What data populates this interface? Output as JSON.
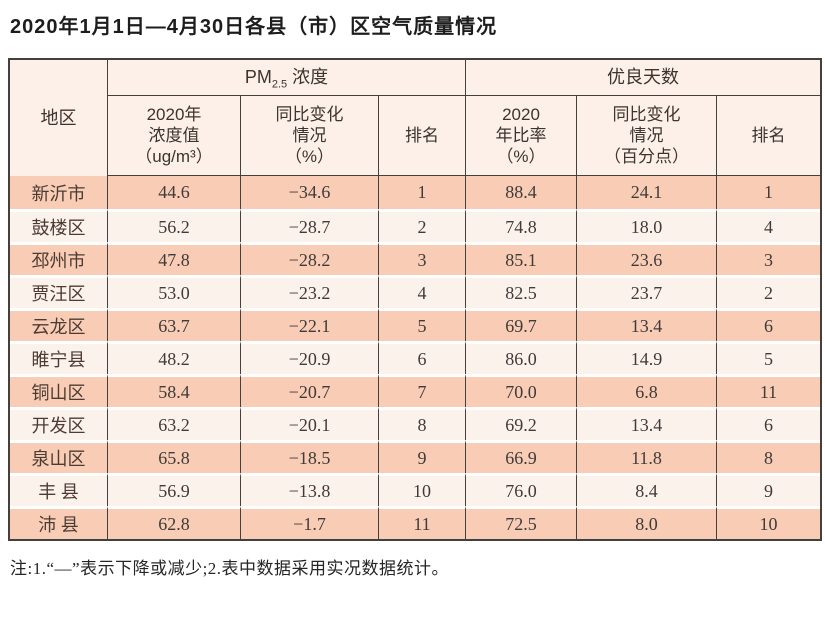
{
  "page": {
    "title": "2020年1月1日—4月30日各县（市）区空气质量情况",
    "note": "注:1.“—”表示下降或减少;2.表中数据采用实况数据统计。"
  },
  "table": {
    "corner_label": "地区",
    "pm_group": {
      "prefix": "PM",
      "sub": "2.5",
      "suffix": " 浓度"
    },
    "days_group_label": "优良天数",
    "sub_headers": {
      "pm_value": "2020年\n浓度值\n（ug/m³）",
      "pm_change": "同比变化\n情况\n（%）",
      "pm_rank": "排名",
      "days_rate": "2020\n年比率\n（%）",
      "days_change": "同比变化\n情况\n（百分点）",
      "days_rank": "排名"
    },
    "field_order": "region,pm_value,pm_change,pm_rank,days_rate,days_change,days_rank",
    "rows": [
      {
        "region": "新沂市",
        "pm_value": "44.6",
        "pm_change": "−34.6",
        "pm_rank": "1",
        "days_rate": "88.4",
        "days_change": "24.1",
        "days_rank": "1"
      },
      {
        "region": "鼓楼区",
        "pm_value": "56.2",
        "pm_change": "−28.7",
        "pm_rank": "2",
        "days_rate": "74.8",
        "days_change": "18.0",
        "days_rank": "4"
      },
      {
        "region": "邳州市",
        "pm_value": "47.8",
        "pm_change": "−28.2",
        "pm_rank": "3",
        "days_rate": "85.1",
        "days_change": "23.6",
        "days_rank": "3"
      },
      {
        "region": "贾汪区",
        "pm_value": "53.0",
        "pm_change": "−23.2",
        "pm_rank": "4",
        "days_rate": "82.5",
        "days_change": "23.7",
        "days_rank": "2"
      },
      {
        "region": "云龙区",
        "pm_value": "63.7",
        "pm_change": "−22.1",
        "pm_rank": "5",
        "days_rate": "69.7",
        "days_change": "13.4",
        "days_rank": "6"
      },
      {
        "region": "睢宁县",
        "pm_value": "48.2",
        "pm_change": "−20.9",
        "pm_rank": "6",
        "days_rate": "86.0",
        "days_change": "14.9",
        "days_rank": "5"
      },
      {
        "region": "铜山区",
        "pm_value": "58.4",
        "pm_change": "−20.7",
        "pm_rank": "7",
        "days_rate": "70.0",
        "days_change": "6.8",
        "days_rank": "11"
      },
      {
        "region": "开发区",
        "pm_value": "63.2",
        "pm_change": "−20.1",
        "pm_rank": "8",
        "days_rate": "69.2",
        "days_change": "13.4",
        "days_rank": "6"
      },
      {
        "region": "泉山区",
        "pm_value": "65.8",
        "pm_change": "−18.5",
        "pm_rank": "9",
        "days_rate": "66.9",
        "days_change": "11.8",
        "days_rank": "8"
      },
      {
        "region": "丰 县",
        "pm_value": "56.9",
        "pm_change": "−13.8",
        "pm_rank": "10",
        "days_rate": "76.0",
        "days_change": "8.4",
        "days_rank": "9"
      },
      {
        "region": "沛 县",
        "pm_value": "62.8",
        "pm_change": "−1.7",
        "pm_rank": "11",
        "days_rate": "72.5",
        "days_change": "8.0",
        "days_rank": "10"
      }
    ]
  },
  "colors": {
    "row_salmon": "#f8ccb5",
    "row_light": "#fcf2ec",
    "header_bg": "#fcf0e8",
    "border_dark": "#44403d",
    "region_text": "#4c3b33",
    "number_text": "#3f3b39"
  },
  "chart_data": {
    "type": "table",
    "title": "2020年1月1日—4月30日各县（市）区空气质量情况",
    "columns": [
      "地区",
      "PM2.5 2020年浓度值(ug/m3)",
      "PM2.5 同比变化情况(%)",
      "PM2.5 排名",
      "优良天数 2020年比率(%)",
      "优良天数 同比变化情况(百分点)",
      "优良天数 排名"
    ],
    "rows": [
      [
        "新沂市",
        44.6,
        -34.6,
        1,
        88.4,
        24.1,
        1
      ],
      [
        "鼓楼区",
        56.2,
        -28.7,
        2,
        74.8,
        18.0,
        4
      ],
      [
        "邳州市",
        47.8,
        -28.2,
        3,
        85.1,
        23.6,
        3
      ],
      [
        "贾汪区",
        53.0,
        -23.2,
        4,
        82.5,
        23.7,
        2
      ],
      [
        "云龙区",
        63.7,
        -22.1,
        5,
        69.7,
        13.4,
        6
      ],
      [
        "睢宁县",
        48.2,
        -20.9,
        6,
        86.0,
        14.9,
        5
      ],
      [
        "铜山区",
        58.4,
        -20.7,
        7,
        70.0,
        6.8,
        11
      ],
      [
        "开发区",
        63.2,
        -20.1,
        8,
        69.2,
        13.4,
        6
      ],
      [
        "泉山区",
        65.8,
        -18.5,
        9,
        66.9,
        11.8,
        8
      ],
      [
        "丰县",
        56.9,
        -13.8,
        10,
        76.0,
        8.4,
        9
      ],
      [
        "沛县",
        62.8,
        -1.7,
        11,
        72.5,
        8.0,
        10
      ]
    ],
    "note": "注:1.“—”表示下降或减少;2.表中数据采用实况数据统计。"
  }
}
